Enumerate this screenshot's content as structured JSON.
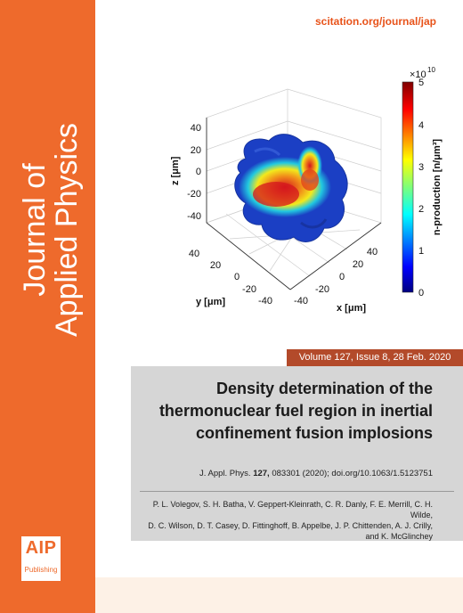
{
  "journal": {
    "title_line1": "Journal of",
    "title_line2": "Applied Physics",
    "url": "scitation.org/journal/jap"
  },
  "publisher": {
    "logo_text": "AIP",
    "logo_subtext": "Publishing"
  },
  "issue": {
    "label": "Volume 127, Issue 8, 28 Feb. 2020"
  },
  "article": {
    "title_line1": "Density determination of the",
    "title_line2": "thermonuclear fuel region in inertial",
    "title_line3": "confinement fusion implosions",
    "citation_prefix": "J. Appl. Phys. ",
    "citation_volume": "127,",
    "citation_rest": " 083301 (2020); doi.org/10.1063/1.5123751",
    "authors_line1": "P. L. Volegov, S. H. Batha, V. Geppert-Kleinrath, C. R. Danly, F. E. Merrill, C. H. Wilde,",
    "authors_line2": "D. C. Wilson, D. T. Casey, D. Fittinghoff, B. Appelbe, J. P. Chittenden, A. J. Crilly,",
    "authors_line3": "and K. McGlinchey"
  },
  "figure": {
    "z_label": "z [μm]",
    "y_label": "y [μm]",
    "x_label": "x [μm]",
    "z_ticks": [
      "40",
      "20",
      "0",
      "-20",
      "-40"
    ],
    "y_ticks": [
      "40",
      "20",
      "0",
      "-20",
      "-40"
    ],
    "x_ticks": [
      "-40",
      "-20",
      "0",
      "20",
      "40"
    ],
    "colorbar_label": "n-production [n/μm³]",
    "colorbar_multiplier": "×10",
    "colorbar_exponent": "10",
    "colorbar_ticks": [
      "5",
      "4",
      "3",
      "2",
      "1",
      "0"
    ],
    "colors": {
      "blue": "#1b3fc4",
      "cyan": "#21c8e0",
      "yellow": "#f3e91c",
      "red": "#d4161d"
    }
  },
  "colors": {
    "spine": "#ee6a2c",
    "volume_bar": "#b34a2a",
    "info_panel": "#d6d6d6"
  }
}
